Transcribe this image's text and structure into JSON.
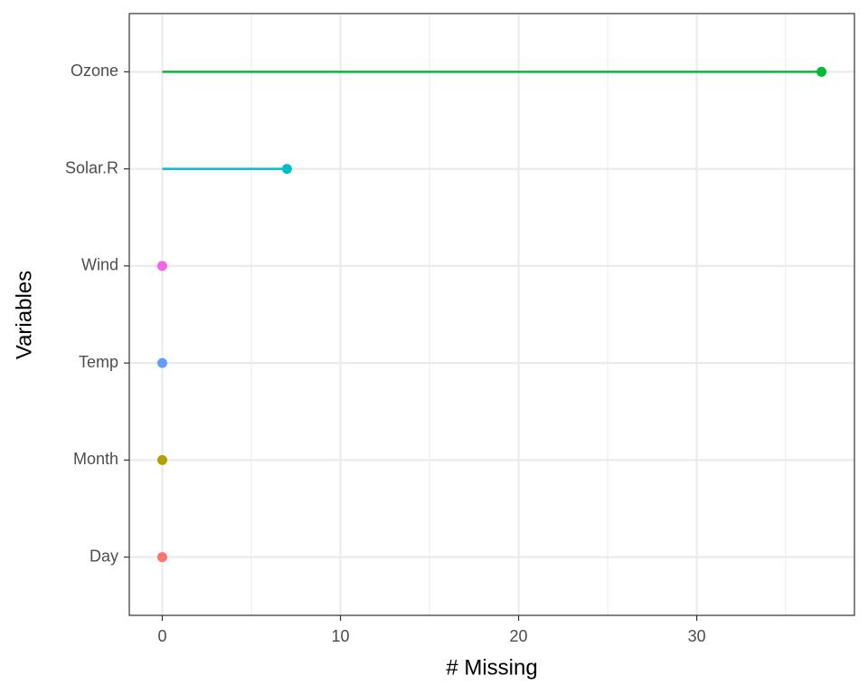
{
  "chart_data": {
    "type": "lollipop",
    "x_label": "# Missing",
    "y_label": "Variables",
    "categories": [
      "Day",
      "Month",
      "Temp",
      "Wind",
      "Solar.R",
      "Ozone"
    ],
    "values": [
      0,
      0,
      0,
      0,
      7,
      37
    ],
    "colors": [
      "#F8766D",
      "#B79F00",
      "#619CFF",
      "#F564E3",
      "#00BFC4",
      "#00BA38"
    ],
    "xlim": [
      -1.85,
      38.85
    ],
    "xticks": [
      0,
      10,
      20,
      30
    ],
    "xminor": [
      5,
      15,
      25,
      35
    ],
    "grid": true
  }
}
